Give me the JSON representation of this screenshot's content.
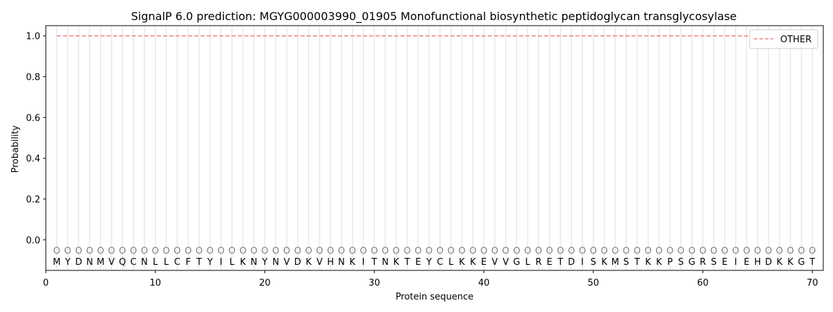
{
  "chart_data": {
    "type": "line",
    "title": "SignalP 6.0 prediction: MGYG000003990_01905 Monofunctional biosynthetic peptidoglycan transglycosylase",
    "xlabel": "Protein sequence",
    "ylabel": "Probability",
    "xlim": [
      0,
      71
    ],
    "ylim": [
      -0.15,
      1.05
    ],
    "xticks": [
      0,
      10,
      20,
      30,
      40,
      50,
      60,
      70
    ],
    "yticks": [
      0.0,
      0.2,
      0.4,
      0.6,
      0.8,
      1.0
    ],
    "sequence": [
      "M",
      "Y",
      "D",
      "N",
      "M",
      "V",
      "Q",
      "C",
      "N",
      "L",
      "L",
      "C",
      "F",
      "T",
      "Y",
      "I",
      "L",
      "K",
      "N",
      "Y",
      "N",
      "V",
      "D",
      "K",
      "V",
      "H",
      "N",
      "K",
      "I",
      "T",
      "N",
      "K",
      "T",
      "E",
      "Y",
      "C",
      "L",
      "K",
      "K",
      "E",
      "V",
      "V",
      "G",
      "L",
      "R",
      "E",
      "T",
      "D",
      "I",
      "S",
      "K",
      "M",
      "S",
      "T",
      "K",
      "K",
      "P",
      "S",
      "G",
      "R",
      "S",
      "E",
      "I",
      "E",
      "H",
      "D",
      "K",
      "K",
      "G",
      "T"
    ],
    "predicted_label": "O",
    "series": [
      {
        "name": "OTHER",
        "color": "#f08080",
        "style": "dashed",
        "x_start": 1,
        "x_end": 70,
        "value": 1.0
      }
    ],
    "legend": {
      "position": "top-right"
    },
    "grid": "vertical lines at each residue"
  }
}
